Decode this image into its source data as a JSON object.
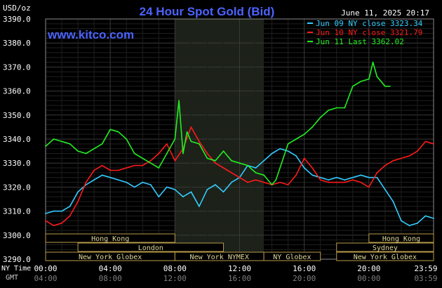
{
  "header": {
    "units": "USD/oz",
    "title": "24 Hour Spot Gold (Bid)",
    "website": "www.kitco.com",
    "timestamp": "June 11, 2025 20:17"
  },
  "legend": [
    {
      "label": "Jun 09 NY close 3323.34",
      "color": "#33ccff"
    },
    {
      "label": "Jun 10 NY close 3321.79",
      "color": "#ff1a1a"
    },
    {
      "label": "Jun 11 Last 3362.02",
      "color": "#22ee22"
    }
  ],
  "sessions": [
    {
      "label": "Hong Kong",
      "start": 0.0,
      "end": 8.0
    },
    {
      "label": "London",
      "start": 2.0,
      "end": 11.0
    },
    {
      "label": "New York Globex",
      "start": 0.0,
      "end": 8.0
    },
    {
      "label": "New York NYMEX",
      "start": 8.0,
      "end": 13.5
    },
    {
      "label": "NY Globex",
      "start": 13.5,
      "end": 17.0
    },
    {
      "label": "Hong Kong",
      "start": 20.0,
      "end": 24.0
    },
    {
      "label": "Sydney",
      "start": 18.0,
      "end": 24.0
    },
    {
      "label": "New York Globex",
      "start": 18.0,
      "end": 24.0
    }
  ],
  "time_axis": {
    "ny_label": "NY Time",
    "gmt_label": "GMT",
    "ny_ticks": [
      "00:00",
      "04:00",
      "08:00",
      "12:00",
      "16:00",
      "20:00",
      "23:59"
    ],
    "gmt_ticks": [
      "04:00",
      "08:00",
      "12:00",
      "16:00",
      "20:00",
      "00:00",
      "03:59"
    ]
  },
  "chart_data": {
    "type": "line",
    "title": "24 Hour Spot Gold (Bid)",
    "ylabel": "USD/oz",
    "ylim": [
      3290,
      3390
    ],
    "y_ticks": [
      "3390.0",
      "3380.0",
      "3370.0",
      "3360.0",
      "3350.0",
      "3340.0",
      "3330.0",
      "3320.0",
      "3310.0",
      "3300.0",
      "3290.0"
    ],
    "x_unit": "hours (NY time)",
    "xlim": [
      0,
      24
    ],
    "highlight": [
      8,
      13.5
    ],
    "grid": true,
    "legend_position": "top-right",
    "series": [
      {
        "name": "Jun 09 NY close 3323.34",
        "color": "#33ccff",
        "x": [
          0,
          0.5,
          1,
          1.5,
          2,
          2.5,
          3,
          3.5,
          4,
          4.5,
          5,
          5.5,
          6,
          6.5,
          7,
          7.5,
          8,
          8.5,
          9,
          9.5,
          10,
          10.5,
          11,
          11.5,
          12,
          12.5,
          13,
          13.5,
          14,
          14.5,
          15,
          15.5,
          16,
          16.5,
          17,
          17.5,
          18,
          18.5,
          19,
          19.5,
          20,
          20.5,
          21,
          21.5,
          22,
          22.5,
          23,
          23.5,
          24
        ],
        "values": [
          3309,
          3310,
          3310,
          3312,
          3318,
          3321,
          3323,
          3325,
          3324,
          3323,
          3322,
          3320,
          3322,
          3321,
          3316,
          3320,
          3319,
          3316,
          3318,
          3312,
          3319,
          3321,
          3318,
          3322,
          3324,
          3329,
          3328,
          3331,
          3334,
          3336,
          3335,
          3333,
          3328,
          3325,
          3324,
          3323,
          3324,
          3323,
          3324,
          3325,
          3324,
          3324,
          3319,
          3314,
          3306,
          3304,
          3305,
          3308,
          3307
        ]
      },
      {
        "name": "Jun 10 NY close 3321.79",
        "color": "#ff1a1a",
        "x": [
          0,
          0.5,
          1,
          1.5,
          2,
          2.5,
          3,
          3.5,
          4,
          4.5,
          5,
          5.5,
          6,
          6.5,
          7,
          7.5,
          8,
          8.5,
          9,
          9.5,
          10,
          10.5,
          11,
          11.5,
          12,
          12.5,
          13,
          13.5,
          14,
          14.5,
          15,
          15.5,
          16,
          16.5,
          17,
          17.5,
          18,
          18.5,
          19,
          19.5,
          20,
          20.5,
          21,
          21.5,
          22,
          22.5,
          23,
          23.5,
          24
        ],
        "values": [
          3306,
          3304,
          3305,
          3308,
          3314,
          3322,
          3327,
          3329,
          3327,
          3327,
          3328,
          3329,
          3329,
          3331,
          3334,
          3338,
          3331,
          3336,
          3345,
          3339,
          3334,
          3330,
          3328,
          3326,
          3324,
          3322,
          3323,
          3322,
          3321,
          3322,
          3321,
          3325,
          3332,
          3328,
          3323,
          3322,
          3322,
          3322,
          3323,
          3322,
          3320,
          3326,
          3329,
          3331,
          3332,
          3333,
          3335,
          3339,
          3338
        ]
      },
      {
        "name": "Jun 11 Last 3362.02",
        "color": "#22ee22",
        "x": [
          0,
          0.5,
          1,
          1.5,
          2,
          2.5,
          3,
          3.5,
          4,
          4.5,
          5,
          5.5,
          6,
          6.5,
          7,
          7.5,
          8,
          8.25,
          8.5,
          8.75,
          9,
          9.5,
          10,
          10.5,
          11,
          11.5,
          12,
          12.5,
          13,
          13.5,
          14,
          14.25,
          14.5,
          15,
          15.5,
          16,
          16.5,
          17,
          17.5,
          18,
          18.5,
          19,
          19.5,
          20,
          20.25,
          20.5,
          21,
          21.3
        ],
        "values": [
          3337,
          3340,
          3339,
          3338,
          3335,
          3334,
          3336,
          3338,
          3344,
          3343,
          3340,
          3334,
          3332,
          3330,
          3328,
          3334,
          3340,
          3356,
          3334,
          3343,
          3339,
          3338,
          3332,
          3331,
          3335,
          3331,
          3330,
          3329,
          3326,
          3325,
          3321,
          3323,
          3328,
          3338,
          3340,
          3342,
          3345,
          3349,
          3352,
          3353,
          3353,
          3362,
          3364,
          3365,
          3372,
          3366,
          3362,
          3362
        ]
      }
    ]
  }
}
